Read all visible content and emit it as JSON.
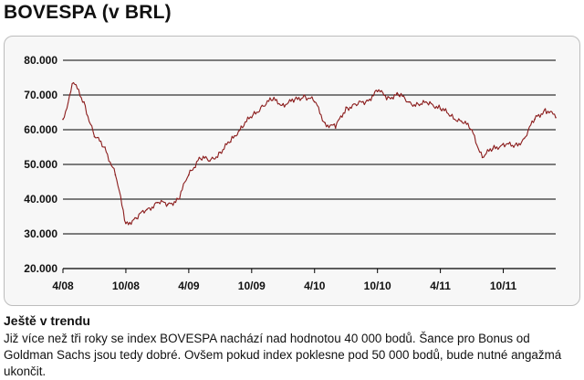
{
  "header": {
    "title": "BOVESPA (v BRL)"
  },
  "chart_data": {
    "type": "line",
    "title": "BOVESPA (v BRL)",
    "xlabel": "",
    "ylabel": "",
    "x_tick_labels": [
      "4/08",
      "10/08",
      "4/09",
      "10/09",
      "4/10",
      "10/10",
      "4/11",
      "10/11"
    ],
    "y_tick_labels": [
      "80.000",
      "70.000",
      "60.000",
      "50.000",
      "40.000",
      "30.000",
      "20.000"
    ],
    "y_ticks": [
      80000,
      70000,
      60000,
      50000,
      40000,
      30000,
      20000
    ],
    "ylim": [
      20000,
      80000
    ],
    "x_range": [
      "2008-04",
      "2012-03"
    ],
    "grid": "horizontal",
    "line_color": "#8b1c1c",
    "series": [
      {
        "x": [
          "2008-04",
          "2008-05",
          "2008-06",
          "2008-07",
          "2008-08",
          "2008-09",
          "2008-10",
          "2008-11",
          "2008-12",
          "2009-01",
          "2009-02",
          "2009-03",
          "2009-04",
          "2009-05",
          "2009-06",
          "2009-07",
          "2009-08",
          "2009-09",
          "2009-10",
          "2009-11",
          "2009-12",
          "2010-01",
          "2010-02",
          "2010-03",
          "2010-04",
          "2010-05",
          "2010-06",
          "2010-07",
          "2010-08",
          "2010-09",
          "2010-10",
          "2010-11",
          "2010-12",
          "2011-01",
          "2011-02",
          "2011-03",
          "2011-04",
          "2011-05",
          "2011-06",
          "2011-07",
          "2011-08",
          "2011-09",
          "2011-10",
          "2011-11",
          "2011-12",
          "2012-01",
          "2012-02",
          "2012-03"
        ],
        "values": [
          63000,
          73500,
          68000,
          58000,
          55000,
          47000,
          33000,
          34500,
          37000,
          39000,
          38500,
          40000,
          47000,
          52000,
          51000,
          53500,
          56500,
          61000,
          63500,
          67000,
          68500,
          67500,
          68000,
          70000,
          68000,
          62000,
          60500,
          66500,
          67000,
          68500,
          71000,
          69500,
          70000,
          68000,
          67000,
          68000,
          66000,
          64000,
          62500,
          60000,
          52000,
          54500,
          56000,
          55000,
          57500,
          63000,
          66000,
          63500
        ]
      }
    ]
  },
  "caption": {
    "heading": "Ještě v trendu",
    "text": "Již více než tři roky se index BOVESPA nachází nad hodnotou 40 000 bodů. Šance pro Bonus od Goldman Sachs jsou tedy dobré. Ovšem pokud index poklesne pod 50 000 bodů, bude nutné angažmá ukončit."
  }
}
